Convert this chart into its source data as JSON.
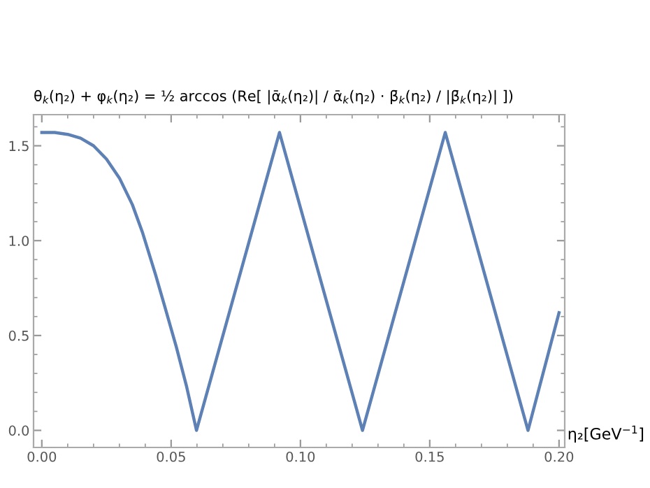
{
  "chart_data": {
    "type": "line",
    "title": "θ$_{k}$(η₂) + φ$_{k}$(η₂) = ½ arccos (Re[ |ᾱ$_{k}$(η₂)| / ᾱ$_{k}$(η₂) · β̄$_{k}$(η₂) / |β̄$_{k}$(η₂)| ])",
    "xlabel": "η₂[GeV$^{−1}$]",
    "x": [
      0,
      0.005,
      0.01,
      0.015,
      0.02,
      0.025,
      0.03,
      0.035,
      0.039,
      0.044,
      0.0476,
      0.052,
      0.056,
      0.0598,
      0.0919,
      0.124,
      0.156,
      0.188,
      0.2
    ],
    "series": [
      {
        "color": "#5e81b5",
        "values": [
          1.57,
          1.57,
          1.56,
          1.54,
          1.5,
          1.43,
          1.33,
          1.19,
          1.04,
          0.82,
          0.65,
          0.44,
          0.23,
          0,
          1.57,
          0,
          1.57,
          0,
          0.62
        ]
      }
    ],
    "xlim": [
      -0.0032,
      0.2022
    ],
    "ylim": [
      -0.09,
      1.664
    ],
    "xticks": [
      {
        "value": 0,
        "label": "0.00"
      },
      0.05,
      {
        "value": 0.1,
        "label": "0.10"
      },
      0.15,
      {
        "value": 0.2,
        "label": "0.20"
      }
    ],
    "yticks": [
      {
        "value": 0,
        "label": "0.0"
      },
      0.5,
      {
        "value": 1,
        "label": "1.0"
      },
      1.5
    ],
    "grid": false,
    "legend": false,
    "marker": "none",
    "line_style": "solid"
  }
}
